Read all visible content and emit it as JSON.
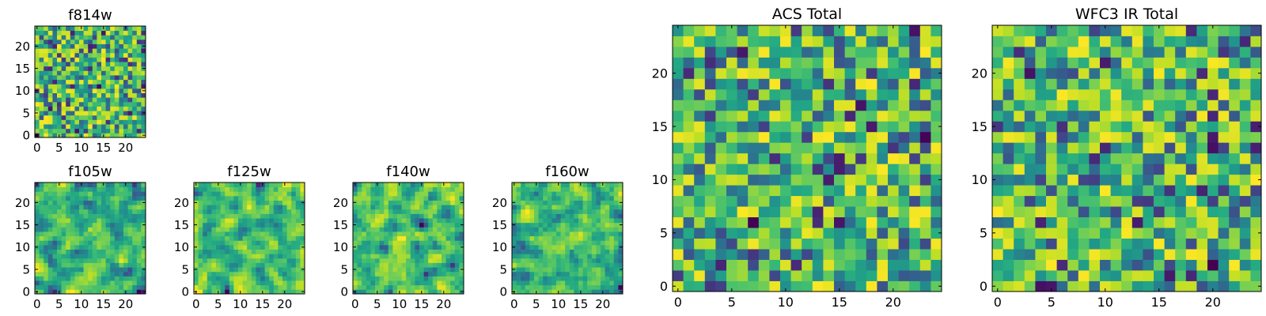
{
  "chart_data": [
    {
      "type": "heatmap",
      "title": "f814w",
      "grid_size": 25,
      "xlim": [
        -0.5,
        24.5
      ],
      "ylim": [
        -0.5,
        24.5
      ],
      "xticks": [
        "0",
        "5",
        "10",
        "15",
        "20"
      ],
      "yticks": [
        "0",
        "5",
        "10",
        "15",
        "20"
      ],
      "origin": "lower",
      "colormap": "viridis",
      "pattern": "noise",
      "seed": 11
    },
    {
      "type": "heatmap",
      "title": "f105w",
      "grid_size": 25,
      "xlim": [
        -0.5,
        24.5
      ],
      "ylim": [
        -0.5,
        24.5
      ],
      "xticks": [
        "0",
        "5",
        "10",
        "15",
        "20"
      ],
      "yticks": [
        "0",
        "5",
        "10",
        "15",
        "20"
      ],
      "origin": "lower",
      "colormap": "viridis",
      "pattern": "smoothed-noise",
      "seed": 23
    },
    {
      "type": "heatmap",
      "title": "f125w",
      "grid_size": 25,
      "xlim": [
        -0.5,
        24.5
      ],
      "ylim": [
        -0.5,
        24.5
      ],
      "xticks": [
        "0",
        "5",
        "10",
        "15",
        "20"
      ],
      "yticks": [
        "0",
        "5",
        "10",
        "15",
        "20"
      ],
      "origin": "lower",
      "colormap": "viridis",
      "pattern": "smoothed-noise",
      "seed": 37
    },
    {
      "type": "heatmap",
      "title": "f140w",
      "grid_size": 25,
      "xlim": [
        -0.5,
        24.5
      ],
      "ylim": [
        -0.5,
        24.5
      ],
      "xticks": [
        "0",
        "5",
        "10",
        "15",
        "20"
      ],
      "yticks": [
        "0",
        "5",
        "10",
        "15",
        "20"
      ],
      "origin": "lower",
      "colormap": "viridis",
      "pattern": "smoothed-noise",
      "seed": 41
    },
    {
      "type": "heatmap",
      "title": "f160w",
      "grid_size": 25,
      "xlim": [
        -0.5,
        24.5
      ],
      "ylim": [
        -0.5,
        24.5
      ],
      "xticks": [
        "0",
        "5",
        "10",
        "15",
        "20"
      ],
      "yticks": [
        "0",
        "5",
        "10",
        "15",
        "20"
      ],
      "origin": "lower",
      "colormap": "viridis",
      "pattern": "smoothed-noise",
      "seed": 53
    },
    {
      "type": "heatmap",
      "title": "ACS Total",
      "grid_size": 25,
      "xlim": [
        -0.5,
        24.5
      ],
      "ylim": [
        -0.5,
        24.5
      ],
      "xticks": [
        "0",
        "5",
        "10",
        "15",
        "20"
      ],
      "yticks": [
        "0",
        "5",
        "10",
        "15",
        "20"
      ],
      "origin": "lower",
      "colormap": "viridis",
      "pattern": "noise",
      "seed": 67
    },
    {
      "type": "heatmap",
      "title": "WFC3 IR Total",
      "grid_size": 25,
      "xlim": [
        -0.5,
        24.5
      ],
      "ylim": [
        -0.5,
        24.5
      ],
      "xticks": [
        "0",
        "5",
        "10",
        "15",
        "20"
      ],
      "yticks": [
        "0",
        "5",
        "10",
        "15",
        "20"
      ],
      "origin": "lower",
      "colormap": "viridis",
      "pattern": "noise",
      "seed": 79
    }
  ]
}
